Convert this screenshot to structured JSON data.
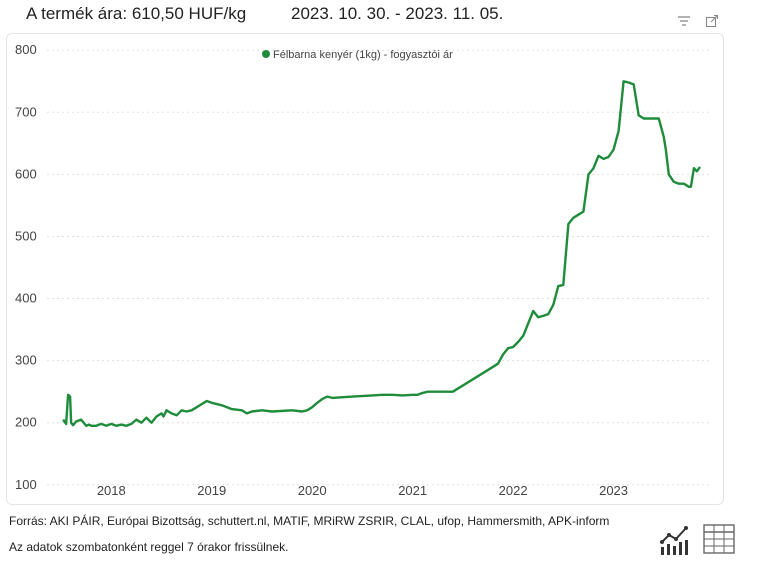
{
  "header": {
    "price_label": "A termék ára: 610,50 HUF/kg",
    "period": "2023. 10. 30. - 2023. 11. 05.",
    "menu_icon": "menu-lines-icon",
    "expand_icon": "expand-icon"
  },
  "colors": {
    "series": "#1e8c3a",
    "grid": "#e0e0e0",
    "text": "#444444"
  },
  "chart_data": {
    "type": "line",
    "title": "",
    "xlabel": "",
    "ylabel": "",
    "legend": {
      "placement": "top-center"
    },
    "grid": "horizontal-dotted",
    "xlim": [
      2017.4,
      2023.95
    ],
    "ylim": [
      90,
      810
    ],
    "yticks": [
      100,
      200,
      300,
      400,
      500,
      600,
      700,
      800
    ],
    "xticks": [
      2018,
      2019,
      2020,
      2021,
      2022,
      2023
    ],
    "series": [
      {
        "name": "Félbarna kenyér (1kg) - fogyasztói ár",
        "color": "#1e8c3a",
        "x": [
          2017.52,
          2017.55,
          2017.57,
          2017.59,
          2017.6,
          2017.62,
          2017.65,
          2017.7,
          2017.75,
          2017.78,
          2017.8,
          2017.85,
          2017.9,
          2017.95,
          2018.0,
          2018.05,
          2018.1,
          2018.15,
          2018.2,
          2018.25,
          2018.3,
          2018.35,
          2018.4,
          2018.45,
          2018.5,
          2018.52,
          2018.55,
          2018.6,
          2018.65,
          2018.7,
          2018.75,
          2018.8,
          2018.85,
          2018.9,
          2018.95,
          2019.0,
          2019.1,
          2019.2,
          2019.3,
          2019.35,
          2019.4,
          2019.5,
          2019.6,
          2019.8,
          2019.9,
          2019.95,
          2020.0,
          2020.05,
          2020.1,
          2020.15,
          2020.2,
          2020.4,
          2020.6,
          2020.7,
          2020.8,
          2020.9,
          2021.0,
          2021.05,
          2021.1,
          2021.15,
          2021.2,
          2021.4,
          2021.6,
          2021.8,
          2021.85,
          2021.9,
          2021.95,
          2022.0,
          2022.05,
          2022.1,
          2022.15,
          2022.2,
          2022.25,
          2022.3,
          2022.35,
          2022.4,
          2022.45,
          2022.5,
          2022.55,
          2022.6,
          2022.65,
          2022.7,
          2022.75,
          2022.8,
          2022.85,
          2022.9,
          2022.95,
          2023.0,
          2023.05,
          2023.1,
          2023.15,
          2023.2,
          2023.25,
          2023.3,
          2023.35,
          2023.4,
          2023.45,
          2023.5,
          2023.52,
          2023.55,
          2023.6,
          2023.65,
          2023.7,
          2023.75,
          2023.77,
          2023.8,
          2023.83,
          2023.86
        ],
        "values": [
          205,
          198,
          245,
          242,
          200,
          196,
          202,
          205,
          195,
          197,
          195,
          195,
          198,
          195,
          198,
          195,
          197,
          195,
          198,
          205,
          200,
          208,
          200,
          210,
          215,
          210,
          220,
          215,
          212,
          220,
          218,
          220,
          225,
          230,
          235,
          232,
          228,
          222,
          220,
          215,
          218,
          220,
          218,
          220,
          218,
          220,
          225,
          232,
          238,
          242,
          240,
          242,
          244,
          245,
          245,
          244,
          245,
          245,
          248,
          250,
          250,
          250,
          270,
          290,
          295,
          310,
          320,
          322,
          330,
          340,
          360,
          380,
          370,
          372,
          375,
          390,
          420,
          422,
          520,
          530,
          535,
          540,
          600,
          610,
          630,
          625,
          628,
          640,
          670,
          750,
          748,
          745,
          695,
          690,
          690,
          690,
          690,
          660,
          640,
          600,
          588,
          585,
          585,
          580,
          580,
          610,
          605,
          612
        ]
      }
    ]
  },
  "footer": {
    "sources": "Forrás: AKI PÁIR, Európai Bizottság, schuttert.nl, MATIF, MRiRW ZSRIR, CLAL, ufop, Hammersmith, APK-inform",
    "update_note": "Az adatok szombatonként reggel 7 órakor frissülnek.",
    "chart_view_icon": "line-chart-icon",
    "table_view_icon": "table-grid-icon"
  }
}
